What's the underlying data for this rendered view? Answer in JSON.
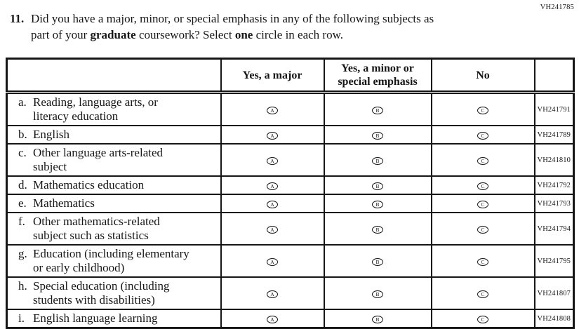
{
  "page": {
    "top_right_code": "VH241785"
  },
  "question": {
    "number": "11.",
    "line1": "Did you have a major, minor, or special emphasis in any of the following subjects as",
    "line2_pre": "part of your ",
    "line2_bold1": "graduate",
    "line2_mid": " coursework? Select ",
    "line2_bold2": "one",
    "line2_post": " circle in each row."
  },
  "table": {
    "header": {
      "label_col": "",
      "col_major": "Yes, a major",
      "col_minor": "Yes, a minor or\nspecial emphasis",
      "col_no": "No",
      "code_col": ""
    },
    "options": [
      "A",
      "B",
      "C"
    ],
    "rows": [
      {
        "letter": "a.",
        "label": "Reading, language arts, or\nliteracy education",
        "code": "VH241791"
      },
      {
        "letter": "b.",
        "label": "English",
        "code": "VH241789"
      },
      {
        "letter": "c.",
        "label": "Other language arts-related\nsubject",
        "code": "VH241810"
      },
      {
        "letter": "d.",
        "label": "Mathematics education",
        "code": "VH241792"
      },
      {
        "letter": "e.",
        "label": "Mathematics",
        "code": "VH241793"
      },
      {
        "letter": "f.",
        "label": "Other mathematics-related\nsubject such as statistics",
        "code": "VH241794"
      },
      {
        "letter": "g.",
        "label": "Education (including elementary\nor early childhood)",
        "code": "VH241795"
      },
      {
        "letter": "h.",
        "label": "Special education (including\nstudents with disabilities)",
        "code": "VH241807"
      },
      {
        "letter": "i.",
        "label": "English language learning",
        "code": "VH241808"
      }
    ]
  }
}
